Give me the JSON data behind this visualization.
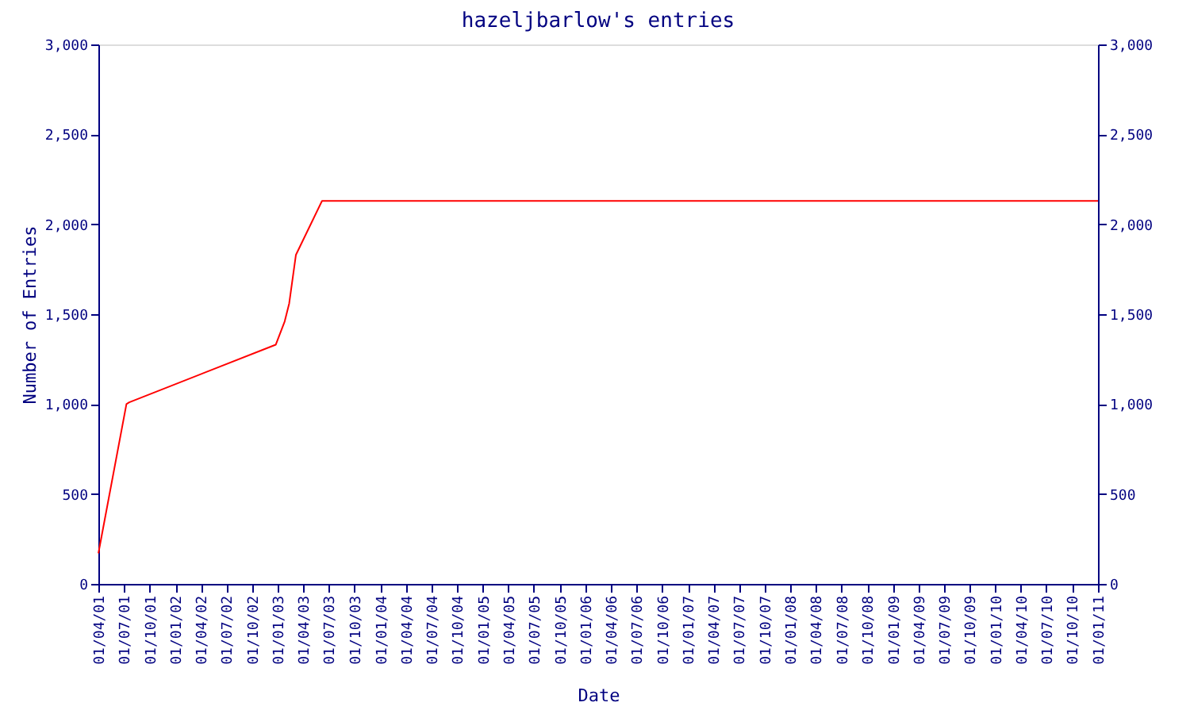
{
  "chart_data": {
    "type": "line",
    "title": "hazeljbarlow's entries",
    "xlabel": "Date",
    "ylabel": "Number of Entries",
    "x": [
      "2001-04-01",
      "2001-07-10",
      "2001-07-20",
      "2002-12-24",
      "2003-01-25",
      "2003-02-10",
      "2003-03-06",
      "2003-06-07",
      "2011-01-01"
    ],
    "series": [
      {
        "color": "#ff0000",
        "values": [
          170,
          1000,
          1010,
          1330,
          1460,
          1560,
          1830,
          2130,
          2130
        ]
      }
    ],
    "xlim": [
      "2001-04-01",
      "2011-01-01"
    ],
    "xticks": [
      {
        "value": "2001-04-01",
        "label": "01/04/01"
      },
      {
        "value": "2001-07-01",
        "label": "01/07/01"
      },
      {
        "value": "2001-10-01",
        "label": "01/10/01"
      },
      {
        "value": "2002-01-01",
        "label": "01/01/02"
      },
      {
        "value": "2002-04-01",
        "label": "01/04/02"
      },
      {
        "value": "2002-07-01",
        "label": "01/07/02"
      },
      {
        "value": "2002-10-01",
        "label": "01/10/02"
      },
      {
        "value": "2003-01-01",
        "label": "01/01/03"
      },
      {
        "value": "2003-04-01",
        "label": "01/04/03"
      },
      {
        "value": "2003-07-01",
        "label": "01/07/03"
      },
      {
        "value": "2003-10-01",
        "label": "01/10/03"
      },
      {
        "value": "2004-01-01",
        "label": "01/01/04"
      },
      {
        "value": "2004-04-01",
        "label": "01/04/04"
      },
      {
        "value": "2004-07-01",
        "label": "01/07/04"
      },
      {
        "value": "2004-10-01",
        "label": "01/10/04"
      },
      {
        "value": "2005-01-01",
        "label": "01/01/05"
      },
      {
        "value": "2005-04-01",
        "label": "01/04/05"
      },
      {
        "value": "2005-07-01",
        "label": "01/07/05"
      },
      {
        "value": "2005-10-01",
        "label": "01/10/05"
      },
      {
        "value": "2006-01-01",
        "label": "01/01/06"
      },
      {
        "value": "2006-04-01",
        "label": "01/04/06"
      },
      {
        "value": "2006-07-01",
        "label": "01/07/06"
      },
      {
        "value": "2006-10-01",
        "label": "01/10/06"
      },
      {
        "value": "2007-01-01",
        "label": "01/01/07"
      },
      {
        "value": "2007-04-01",
        "label": "01/04/07"
      },
      {
        "value": "2007-07-01",
        "label": "01/07/07"
      },
      {
        "value": "2007-10-01",
        "label": "01/10/07"
      },
      {
        "value": "2008-01-01",
        "label": "01/01/08"
      },
      {
        "value": "2008-04-01",
        "label": "01/04/08"
      },
      {
        "value": "2008-07-01",
        "label": "01/07/08"
      },
      {
        "value": "2008-10-01",
        "label": "01/10/08"
      },
      {
        "value": "2009-01-01",
        "label": "01/01/09"
      },
      {
        "value": "2009-04-01",
        "label": "01/04/09"
      },
      {
        "value": "2009-07-01",
        "label": "01/07/09"
      },
      {
        "value": "2009-10-01",
        "label": "01/10/09"
      },
      {
        "value": "2010-01-01",
        "label": "01/01/10"
      },
      {
        "value": "2010-04-01",
        "label": "01/04/10"
      },
      {
        "value": "2010-07-01",
        "label": "01/07/10"
      },
      {
        "value": "2010-10-01",
        "label": "01/10/10"
      },
      {
        "value": "2011-01-01",
        "label": "01/01/11"
      }
    ],
    "ylim": [
      0,
      3000
    ],
    "yticks": [
      0,
      500,
      {
        "value": 1000,
        "label": "1,000"
      },
      {
        "value": 1500,
        "label": "1,500"
      },
      {
        "value": 2000,
        "label": "2,000"
      },
      {
        "value": 2500,
        "label": "2,500"
      },
      {
        "value": 3000,
        "label": "3,000"
      }
    ],
    "y2lim": [
      0,
      3000
    ],
    "y2ticks": [
      0,
      500,
      {
        "value": 1000,
        "label": "1,000"
      },
      {
        "value": 1500,
        "label": "1,500"
      },
      {
        "value": 2000,
        "label": "2,000"
      },
      {
        "value": 2500,
        "label": "2,500"
      },
      {
        "value": 3000,
        "label": "3,000"
      }
    ],
    "grid": false,
    "marker": "none",
    "line_style": "solid"
  }
}
